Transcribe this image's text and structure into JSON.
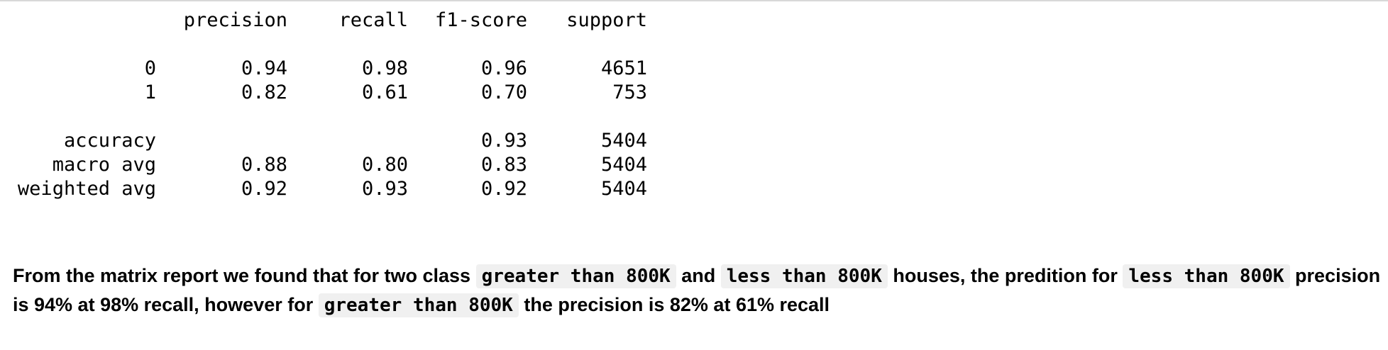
{
  "report": {
    "headers": [
      "precision",
      "recall",
      "f1-score",
      "support"
    ],
    "rows": [
      {
        "label": "0",
        "precision": "0.94",
        "recall": "0.98",
        "f1": "0.96",
        "support": "4651"
      },
      {
        "label": "1",
        "precision": "0.82",
        "recall": "0.61",
        "f1": "0.70",
        "support": "753"
      },
      {
        "label": "accuracy",
        "precision": "",
        "recall": "",
        "f1": "0.93",
        "support": "5404"
      },
      {
        "label": "macro avg",
        "precision": "0.88",
        "recall": "0.80",
        "f1": "0.83",
        "support": "5404"
      },
      {
        "label": "weighted avg",
        "precision": "0.92",
        "recall": "0.93",
        "f1": "0.92",
        "support": "5404"
      }
    ]
  },
  "markdown": {
    "t1": "From the matrix report we found that for two class ",
    "code1": "greater than 800K",
    "t2": " and ",
    "code2": "less than 800K",
    "t3": " houses, the predition for ",
    "code3": "less than 800K",
    "t4": " precision is 94% at 98% recall, however for ",
    "code4": "greater than 800K",
    "t5": " the precision is 82% at 61% recall"
  }
}
